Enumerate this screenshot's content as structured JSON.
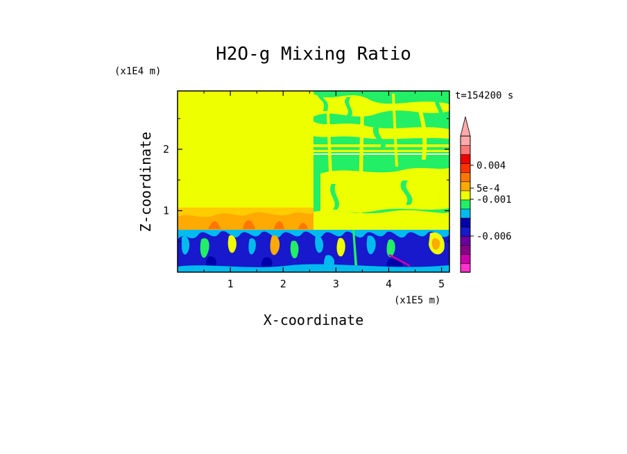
{
  "chart_data": {
    "type": "heatmap",
    "title": "H2O-g Mixing Ratio",
    "xlabel": "X-coordinate",
    "ylabel": "Z-coordinate",
    "x_unit": "(x1E5 m)",
    "y_unit": "(x1E4 m)",
    "time_label": "t=154200 s",
    "xlim": [
      0,
      5.15
    ],
    "ylim": [
      0,
      2.95
    ],
    "x_ticks": [
      1,
      2,
      3,
      4,
      5
    ],
    "y_ticks": [
      1,
      2
    ],
    "x_tick_labels": [
      "1",
      "2",
      "3",
      "4",
      "5"
    ],
    "y_tick_labels": [
      "1",
      "2"
    ],
    "grid": false,
    "colorbar": {
      "colors": [
        "#ff33cc",
        "#cc00aa",
        "#880088",
        "#6a00a0",
        "#1818cc",
        "#0000aa",
        "#00bbee",
        "#22ee66",
        "#eeff00",
        "#ffaa00",
        "#ff7700",
        "#ff3300",
        "#ee0000",
        "#ff7777",
        "#ffaaaa"
      ],
      "labels": [
        "0.004",
        "5e-4",
        "-0.001",
        "-0.006"
      ],
      "label_values": [
        0.004,
        0.0005,
        -0.001,
        -0.006
      ],
      "extend_top": true
    },
    "regions": [
      {
        "name": "upper-left-plateau",
        "x": [
          0,
          2.55
        ],
        "z": [
          1.0,
          2.95
        ],
        "color": "#eeff00"
      },
      {
        "name": "upper-right-mixed",
        "x": [
          2.55,
          5.15
        ],
        "z": [
          0.8,
          2.95
        ],
        "color": "#22ee66"
      },
      {
        "name": "boundary-layer-left",
        "x": [
          0,
          2.55
        ],
        "z": [
          0.7,
          1.0
        ],
        "color": "#ffcc00"
      },
      {
        "name": "lower-turbulent",
        "x": [
          0,
          5.15
        ],
        "z": [
          0,
          0.7
        ],
        "color": "#1818cc"
      }
    ]
  }
}
